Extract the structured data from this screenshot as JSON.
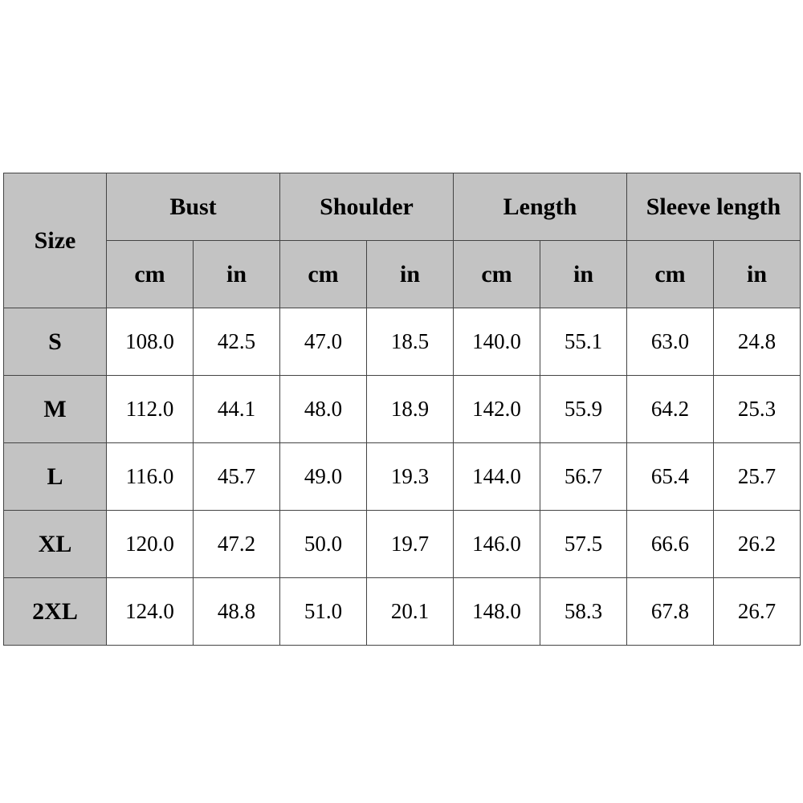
{
  "table": {
    "size_header": "Size",
    "groups": [
      "Bust",
      "Shoulder",
      "Length",
      "Sleeve length"
    ],
    "units": [
      "cm",
      "in",
      "cm",
      "in",
      "cm",
      "in",
      "cm",
      "in"
    ],
    "rows": [
      {
        "size": "S",
        "values": [
          "108.0",
          "42.5",
          "47.0",
          "18.5",
          "140.0",
          "55.1",
          "63.0",
          "24.8"
        ]
      },
      {
        "size": "M",
        "values": [
          "112.0",
          "44.1",
          "48.0",
          "18.9",
          "142.0",
          "55.9",
          "64.2",
          "25.3"
        ]
      },
      {
        "size": "L",
        "values": [
          "116.0",
          "45.7",
          "49.0",
          "19.3",
          "144.0",
          "56.7",
          "65.4",
          "25.7"
        ]
      },
      {
        "size": "XL",
        "values": [
          "120.0",
          "47.2",
          "50.0",
          "19.7",
          "146.0",
          "57.5",
          "66.6",
          "26.2"
        ]
      },
      {
        "size": "2XL",
        "values": [
          "124.0",
          "48.8",
          "51.0",
          "20.1",
          "148.0",
          "58.3",
          "67.8",
          "26.7"
        ]
      }
    ]
  },
  "colors": {
    "header_bg": "#c3c3c3",
    "border": "#444444"
  }
}
